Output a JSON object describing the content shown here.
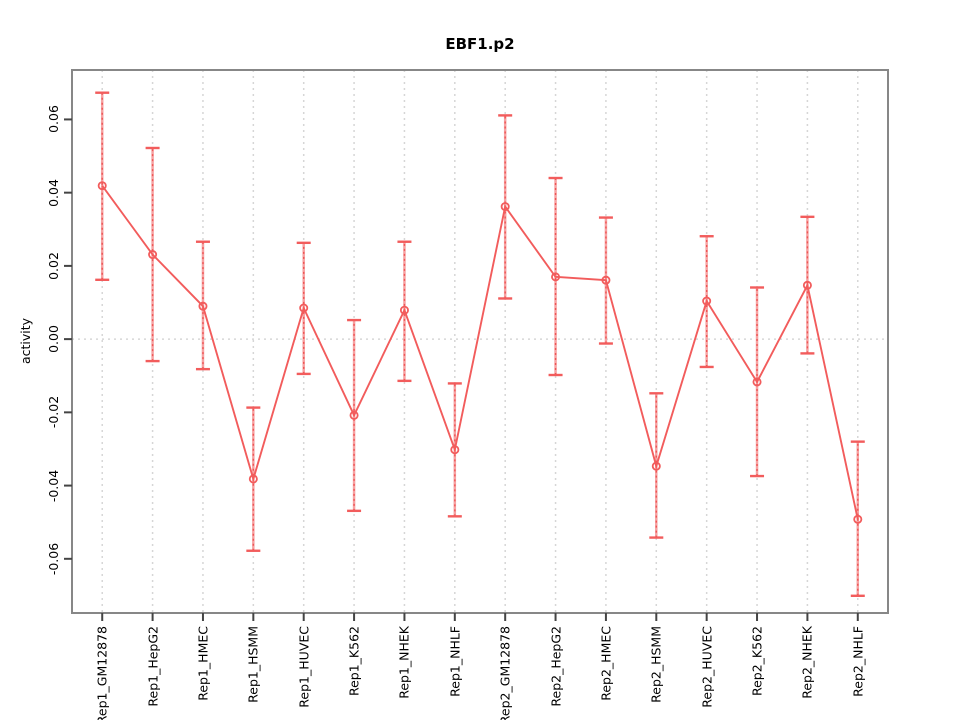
{
  "chart_data": {
    "type": "line",
    "title": "EBF1.p2",
    "xlabel": "",
    "ylabel": "activity",
    "categories": [
      "Rep1_GM12878",
      "Rep1_HepG2",
      "Rep1_HMEC",
      "Rep1_HSMM",
      "Rep1_HUVEC",
      "Rep1_K562",
      "Rep1_NHEK",
      "Rep1_NHLF",
      "Rep2_GM12878",
      "Rep2_HepG2",
      "Rep2_HMEC",
      "Rep2_HSMM",
      "Rep2_HUVEC",
      "Rep2_K562",
      "Rep2_NHEK",
      "Rep2_NHLF"
    ],
    "values": [
      0.0419,
      0.0231,
      0.009,
      -0.0382,
      0.0085,
      -0.0208,
      0.0079,
      -0.0302,
      0.0362,
      0.017,
      0.0161,
      -0.0347,
      0.0104,
      -0.0117,
      0.0147,
      -0.0492
    ],
    "error_low": [
      0.0162,
      -0.006,
      -0.0082,
      -0.0578,
      -0.0095,
      -0.0469,
      -0.0114,
      -0.0484,
      0.0111,
      -0.0098,
      -0.0012,
      -0.0542,
      -0.0076,
      -0.0374,
      -0.0039,
      -0.0701
    ],
    "error_high": [
      0.0673,
      0.0522,
      0.0266,
      -0.0187,
      0.0263,
      0.0052,
      0.0266,
      -0.0121,
      0.0611,
      0.044,
      0.0332,
      -0.0148,
      0.0281,
      0.0141,
      0.0334,
      -0.028
    ],
    "yticks": [
      -0.06,
      -0.04,
      -0.02,
      0,
      0.02,
      0.04,
      0.06
    ],
    "ytick_labels": [
      "-0.06",
      "-0.04",
      "-0.02",
      "0.00",
      "0.02",
      "0.04",
      "0.06"
    ],
    "ylim": [
      -0.0748,
      0.0735
    ],
    "grid": "vertical dotted line at every category; horizontal dotted line at y=0 only",
    "legend": "none",
    "point_style": "open circle",
    "colors": {
      "series": "#f25c5c",
      "error_bar_core": "#f6a2a2",
      "error_bar_dash": "#ee5555",
      "grid": "#d6d6d6",
      "axis_tick": "#444444",
      "plot_border": "#878787",
      "text": "#000000"
    }
  }
}
